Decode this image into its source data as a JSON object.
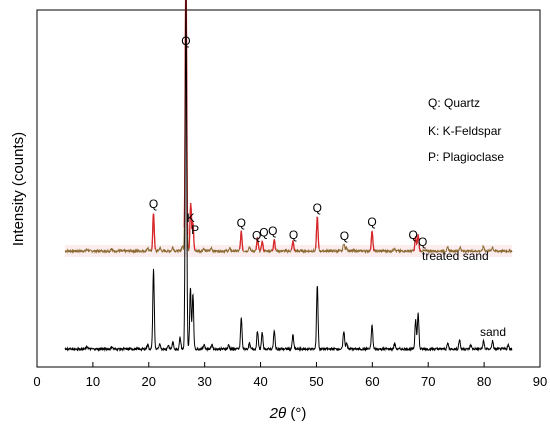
{
  "chart_data": {
    "type": "line",
    "xlabel_italic": "2θ",
    "xlabel_unit": " (°)",
    "ylabel": "Intensity (counts)",
    "xlim": [
      0,
      90
    ],
    "xticks": [
      0,
      10,
      20,
      30,
      40,
      50,
      60,
      70,
      80,
      90
    ],
    "grid": false,
    "legend": [
      {
        "text": "Q: Quartz"
      },
      {
        "text": "K: K-Feldspar"
      },
      {
        "text": "P: Plagioclase"
      }
    ],
    "series": [
      {
        "name": "treated sand",
        "color": "#8a6a2f",
        "highlight_color": "#d9262b",
        "baseline": 0.245,
        "peaks": [
          [
            9,
            0.004
          ],
          [
            13.3,
            0.006
          ],
          [
            19.8,
            0.008
          ],
          [
            20.85,
            0.095
          ],
          [
            22.0,
            0.008
          ],
          [
            24.3,
            0.01
          ],
          [
            26.0,
            0.012
          ],
          [
            26.65,
            0.74
          ],
          [
            27.5,
            0.12
          ],
          [
            27.9,
            0.07
          ],
          [
            29.8,
            0.006
          ],
          [
            31.2,
            0.008
          ],
          [
            34.5,
            0.006
          ],
          [
            36.55,
            0.048
          ],
          [
            38.0,
            0.01
          ],
          [
            39.45,
            0.032
          ],
          [
            40.3,
            0.024
          ],
          [
            42.45,
            0.03
          ],
          [
            45.8,
            0.024
          ],
          [
            50.15,
            0.085
          ],
          [
            54.9,
            0.02
          ],
          [
            55.4,
            0.01
          ],
          [
            59.95,
            0.05
          ],
          [
            63.9,
            0.008
          ],
          [
            67.75,
            0.035
          ],
          [
            68.2,
            0.04
          ],
          [
            73.5,
            0.008
          ],
          [
            75.7,
            0.01
          ],
          [
            79.9,
            0.012
          ],
          [
            81.5,
            0.01
          ]
        ]
      },
      {
        "name": "sand",
        "color": "#000000",
        "baseline": 0.0,
        "peaks": [
          [
            9,
            0.006
          ],
          [
            13.4,
            0.006
          ],
          [
            19.8,
            0.012
          ],
          [
            20.85,
            0.2
          ],
          [
            22.0,
            0.012
          ],
          [
            23.5,
            0.01
          ],
          [
            24.3,
            0.016
          ],
          [
            25.6,
            0.03
          ],
          [
            26.65,
            0.88
          ],
          [
            27.45,
            0.155
          ],
          [
            27.9,
            0.14
          ],
          [
            29.9,
            0.012
          ],
          [
            31.3,
            0.012
          ],
          [
            34.3,
            0.01
          ],
          [
            36.55,
            0.078
          ],
          [
            38.0,
            0.014
          ],
          [
            39.45,
            0.045
          ],
          [
            40.3,
            0.04
          ],
          [
            42.45,
            0.045
          ],
          [
            45.8,
            0.035
          ],
          [
            50.15,
            0.16
          ],
          [
            54.9,
            0.045
          ],
          [
            55.4,
            0.016
          ],
          [
            59.95,
            0.06
          ],
          [
            64.0,
            0.014
          ],
          [
            67.75,
            0.075
          ],
          [
            68.2,
            0.09
          ],
          [
            73.5,
            0.014
          ],
          [
            75.6,
            0.024
          ],
          [
            77.6,
            0.01
          ],
          [
            79.9,
            0.02
          ],
          [
            81.5,
            0.02
          ],
          [
            84.3,
            0.01
          ]
        ]
      }
    ],
    "annotations": [
      {
        "text": "Q",
        "x": 26.65
      },
      {
        "text": "Q",
        "x": 20.85
      },
      {
        "text": "K",
        "x": 27.5
      },
      {
        "text": "P",
        "x": 28.3
      },
      {
        "text": "Q",
        "x": 36.55
      },
      {
        "text": "Q",
        "x": 39.3
      },
      {
        "text": "Q",
        "x": 40.6
      },
      {
        "text": "Q",
        "x": 42.2
      },
      {
        "text": "Q",
        "x": 45.9
      },
      {
        "text": "Q",
        "x": 50.15
      },
      {
        "text": "Q",
        "x": 55.0
      },
      {
        "text": "Q",
        "x": 59.95
      },
      {
        "text": "Q",
        "x": 67.3
      },
      {
        "text": "Q",
        "x": 69.0
      }
    ]
  }
}
